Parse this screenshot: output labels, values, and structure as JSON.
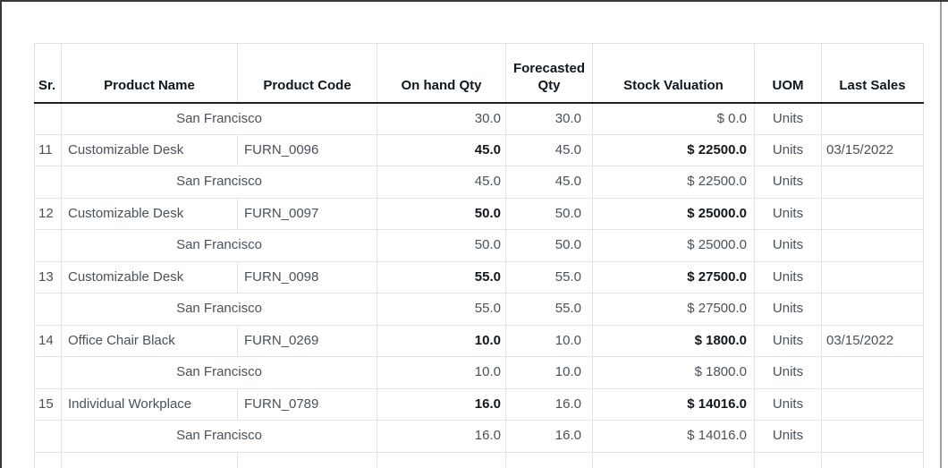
{
  "report": {
    "location_name": "San Francisco",
    "table": {
      "columns": [
        {
          "key": "sr",
          "label": "Sr."
        },
        {
          "key": "product_name",
          "label": "Product Name"
        },
        {
          "key": "product_code",
          "label": "Product Code"
        },
        {
          "key": "on_hand_qty",
          "label": "On hand Qty"
        },
        {
          "key": "forecasted_qty",
          "label": "Forecasted Qty"
        },
        {
          "key": "stock_valuation",
          "label": "Stock Valuation"
        },
        {
          "key": "uom",
          "label": "UOM"
        },
        {
          "key": "last_sales",
          "label": "Last Sales"
        }
      ],
      "rows": [
        {
          "type": "location",
          "sr": "",
          "location": "San Francisco",
          "on_hand_qty": "30.0",
          "forecasted_qty": "30.0",
          "stock_valuation": "$ 0.0",
          "uom": "Units",
          "last_sales": ""
        },
        {
          "type": "product",
          "sr": "11",
          "product_name": "Customizable Desk",
          "product_code": "FURN_0096",
          "on_hand_qty": "45.0",
          "forecasted_qty": "45.0",
          "stock_valuation": "$ 22500.0",
          "uom": "Units",
          "last_sales": "03/15/2022"
        },
        {
          "type": "location",
          "sr": "",
          "location": "San Francisco",
          "on_hand_qty": "45.0",
          "forecasted_qty": "45.0",
          "stock_valuation": "$ 22500.0",
          "uom": "Units",
          "last_sales": ""
        },
        {
          "type": "product",
          "sr": "12",
          "product_name": "Customizable Desk",
          "product_code": "FURN_0097",
          "on_hand_qty": "50.0",
          "forecasted_qty": "50.0",
          "stock_valuation": "$ 25000.0",
          "uom": "Units",
          "last_sales": ""
        },
        {
          "type": "location",
          "sr": "",
          "location": "San Francisco",
          "on_hand_qty": "50.0",
          "forecasted_qty": "50.0",
          "stock_valuation": "$ 25000.0",
          "uom": "Units",
          "last_sales": ""
        },
        {
          "type": "product",
          "sr": "13",
          "product_name": "Customizable Desk",
          "product_code": "FURN_0098",
          "on_hand_qty": "55.0",
          "forecasted_qty": "55.0",
          "stock_valuation": "$ 27500.0",
          "uom": "Units",
          "last_sales": ""
        },
        {
          "type": "location",
          "sr": "",
          "location": "San Francisco",
          "on_hand_qty": "55.0",
          "forecasted_qty": "55.0",
          "stock_valuation": "$ 27500.0",
          "uom": "Units",
          "last_sales": ""
        },
        {
          "type": "product",
          "sr": "14",
          "product_name": "Office Chair Black",
          "product_code": "FURN_0269",
          "on_hand_qty": "10.0",
          "forecasted_qty": "10.0",
          "stock_valuation": "$ 1800.0",
          "uom": "Units",
          "last_sales": "03/15/2022"
        },
        {
          "type": "location",
          "sr": "",
          "location": "San Francisco",
          "on_hand_qty": "10.0",
          "forecasted_qty": "10.0",
          "stock_valuation": "$ 1800.0",
          "uom": "Units",
          "last_sales": ""
        },
        {
          "type": "product",
          "sr": "15",
          "product_name": "Individual Workplace",
          "product_code": "FURN_0789",
          "on_hand_qty": "16.0",
          "forecasted_qty": "16.0",
          "stock_valuation": "$ 14016.0",
          "uom": "Units",
          "last_sales": ""
        },
        {
          "type": "location",
          "sr": "",
          "location": "San Francisco",
          "on_hand_qty": "16.0",
          "forecasted_qty": "16.0",
          "stock_valuation": "$ 14016.0",
          "uom": "Units",
          "last_sales": ""
        },
        {
          "type": "partial"
        }
      ]
    },
    "colors": {
      "header_rule": "#1f1f1f",
      "grid_border": "#e0e4e8",
      "header_text": "#10181f",
      "body_text": "#4a515a",
      "bold_text": "#13181d",
      "frame_dark": "#383838",
      "frame_gray": "#9da1a6"
    }
  }
}
